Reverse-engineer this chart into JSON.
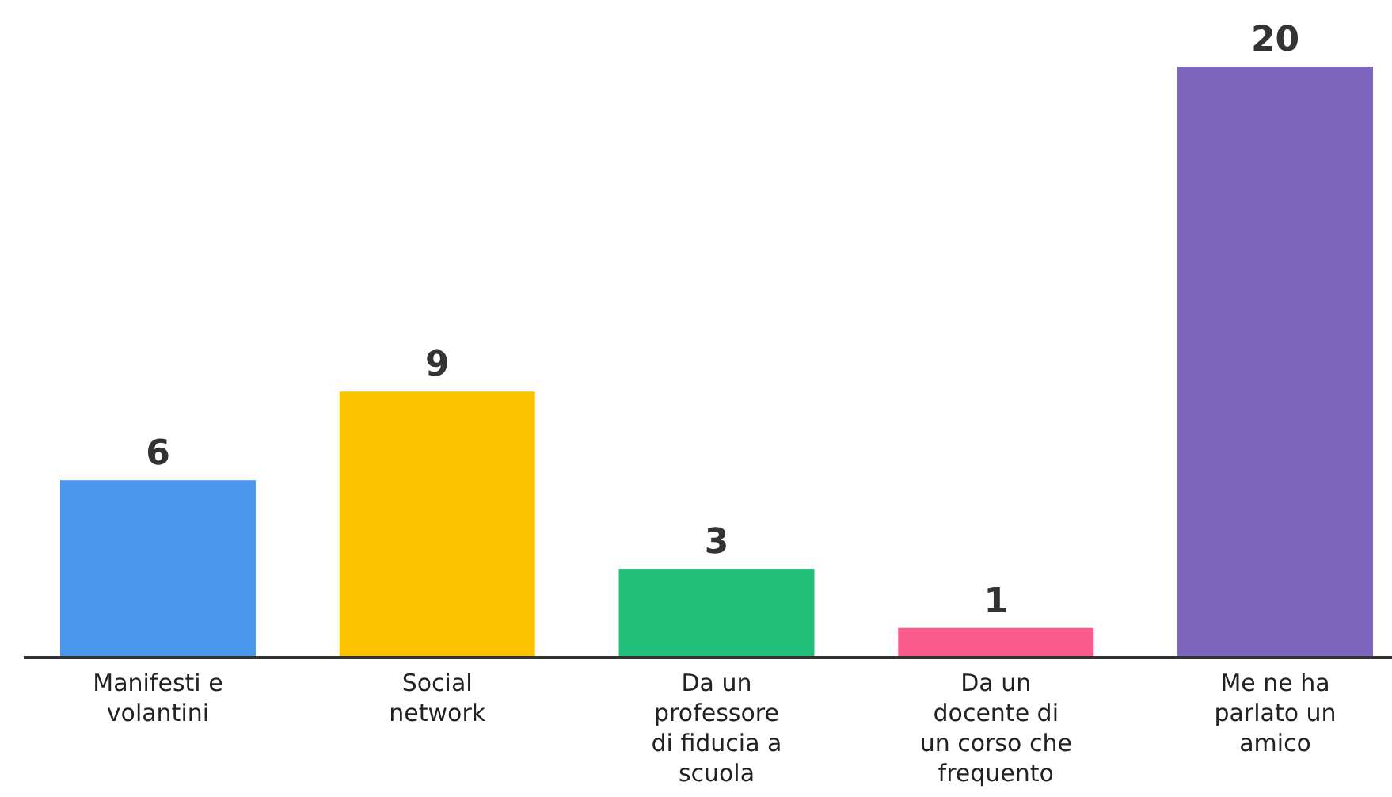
{
  "chart_data": {
    "type": "bar",
    "categories": [
      "Manifesti e volantini",
      "Social network",
      "Da un professore di fiducia a scuola",
      "Da un docente di un corso che frequento",
      "Me ne ha parlato un amico"
    ],
    "values": [
      6,
      9,
      3,
      1,
      20
    ],
    "colors": [
      "#4a97ee",
      "#fbc200",
      "#21c07a",
      "#fb5a8c",
      "#7e66bd"
    ],
    "data_labels": true
  }
}
